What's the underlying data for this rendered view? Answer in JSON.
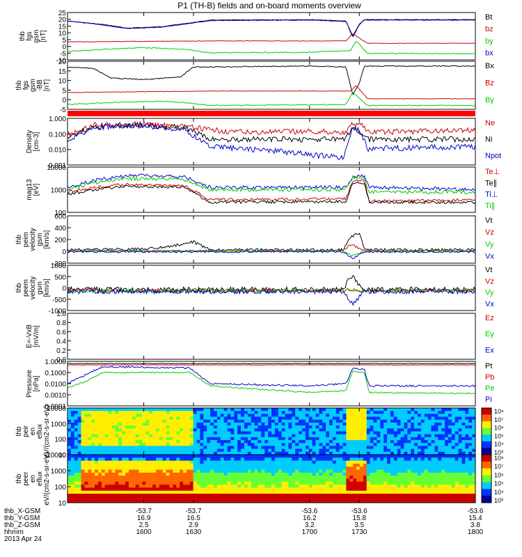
{
  "title": "P1 (TH-B) fields and on-board moments overview",
  "x_ticks": [
    "1600",
    "1630",
    "1700",
    "1730",
    "1800"
  ],
  "x_tick_values": [
    1600,
    1630,
    1700,
    1730,
    1800
  ],
  "ephemeris": {
    "labels": [
      "thb_X-GSM",
      "thb_Y-GSM",
      "thb_Z-GSM",
      "hhmm",
      "2013 Apr 24"
    ],
    "rows": [
      [
        "-53.7",
        "-53.7",
        "-53.6",
        "-53.6",
        "-53.6"
      ],
      [
        "16.9",
        "16.5",
        "16.2",
        "15.8",
        "15.4"
      ],
      [
        "2.5",
        "2.9",
        "3.2",
        "3.5",
        "3.8"
      ],
      [
        "1600",
        "1630",
        "1700",
        "1730",
        "1800"
      ]
    ]
  },
  "colorbar": {
    "ion_ticks": [
      "10⁸",
      "10⁷",
      "10⁶",
      "10⁵",
      "10⁴",
      "10³"
    ],
    "electron_ticks": [
      "10⁸",
      "10⁷",
      "10⁶",
      "10⁵",
      "10⁴",
      "10³"
    ],
    "colors": [
      "#cc0000",
      "#ff6600",
      "#ffee00",
      "#66ff33",
      "#00ccff",
      "#0033ff",
      "#000099"
    ]
  },
  "chart_data": [
    {
      "type": "line",
      "ylabel": "thb fgs gsm [nT]",
      "yticks": [
        "25",
        "20",
        "15",
        "10",
        "5",
        "0",
        "-5",
        "-10"
      ],
      "ylim": [
        -10,
        25
      ],
      "series": [
        {
          "name": "Bt",
          "color": "#000000"
        },
        {
          "name": "bz",
          "color": "#cc0000"
        },
        {
          "name": "by",
          "color": "#00cc00"
        },
        {
          "name": "bx",
          "color": "#0000cc"
        }
      ]
    },
    {
      "type": "line",
      "ylabel": "thb fgs gsm -BB [nT]",
      "yticks": [
        "20",
        "15",
        "10",
        "5",
        "0",
        "-5"
      ],
      "ylim": [
        -7,
        20
      ],
      "series": [
        {
          "name": "Bx",
          "color": "#000000"
        },
        {
          "name": "Bz",
          "color": "#cc0000"
        },
        {
          "name": "By",
          "color": "#00cc00"
        }
      ]
    },
    {
      "type": "line",
      "ylabel": "Density [cm-3]",
      "yticks": [
        "1.000",
        "0.100",
        "0.010",
        "0.001"
      ],
      "scale": "log",
      "series": [
        {
          "name": "Ne",
          "color": "#cc0000"
        },
        {
          "name": "Ni",
          "color": "#000000"
        },
        {
          "name": "Npot",
          "color": "#0000cc"
        }
      ]
    },
    {
      "type": "line",
      "ylabel": "mag13 [eV]",
      "yticks": [
        "10000",
        "1000",
        "100"
      ],
      "scale": "log",
      "series": [
        {
          "name": "Te⊥",
          "color": "#cc0000"
        },
        {
          "name": "Te∥",
          "color": "#000000"
        },
        {
          "name": "Ti⊥",
          "color": "#0000cc"
        },
        {
          "name": "Ti∥",
          "color": "#00cc00"
        }
      ]
    },
    {
      "type": "line",
      "ylabel": "thb peim velocity gsm [km/s]",
      "yticks": [
        "600",
        "400",
        "200",
        "0",
        "-200"
      ],
      "ylim": [
        -200,
        600
      ],
      "series": [
        {
          "name": "Vt",
          "color": "#000000"
        },
        {
          "name": "Vz",
          "color": "#cc0000"
        },
        {
          "name": "Vy",
          "color": "#00cc00"
        },
        {
          "name": "Vx",
          "color": "#0000cc"
        }
      ]
    },
    {
      "type": "line",
      "ylabel": "thb peem velocity gsm [km/s]",
      "yticks": [
        "1000",
        "500",
        "0",
        "-500",
        "-1000"
      ],
      "ylim": [
        -1000,
        1000
      ],
      "series": [
        {
          "name": "Vt",
          "color": "#000000"
        },
        {
          "name": "Vz",
          "color": "#cc0000"
        },
        {
          "name": "Vy",
          "color": "#00cc00"
        },
        {
          "name": "Vx",
          "color": "#0000cc"
        }
      ]
    },
    {
      "type": "line",
      "ylabel": "E=-VxB [mV/m]",
      "yticks": [
        "1.0",
        "0.8",
        "0.6",
        "0.4",
        "0.2",
        "0.0"
      ],
      "ylim": [
        0,
        1
      ],
      "series": [
        {
          "name": "Ez",
          "color": "#cc0000"
        },
        {
          "name": "Ey",
          "color": "#00cc00"
        },
        {
          "name": "Ex",
          "color": "#0000cc"
        }
      ]
    },
    {
      "type": "line",
      "ylabel": "Pressure [nPa]",
      "yticks": [
        "1.0000",
        "0.1000",
        "0.0100",
        "0.0010",
        "0.0001"
      ],
      "scale": "log",
      "series": [
        {
          "name": "Pt",
          "color": "#000000"
        },
        {
          "name": "Pb",
          "color": "#cc0000"
        },
        {
          "name": "Pe",
          "color": "#00cc00"
        },
        {
          "name": "Pi",
          "color": "#0000cc"
        }
      ]
    },
    {
      "type": "heatmap",
      "ylabel": "thb peir en eflux eV/(cm2-s-sr-eV)",
      "yticks": [
        "10000",
        "1000",
        "100",
        "10"
      ]
    },
    {
      "type": "heatmap",
      "ylabel": "thb peer en eflux eV/(cm2-s-sr-eV)",
      "yticks": [
        "10000",
        "1000",
        "100",
        "10"
      ]
    }
  ]
}
